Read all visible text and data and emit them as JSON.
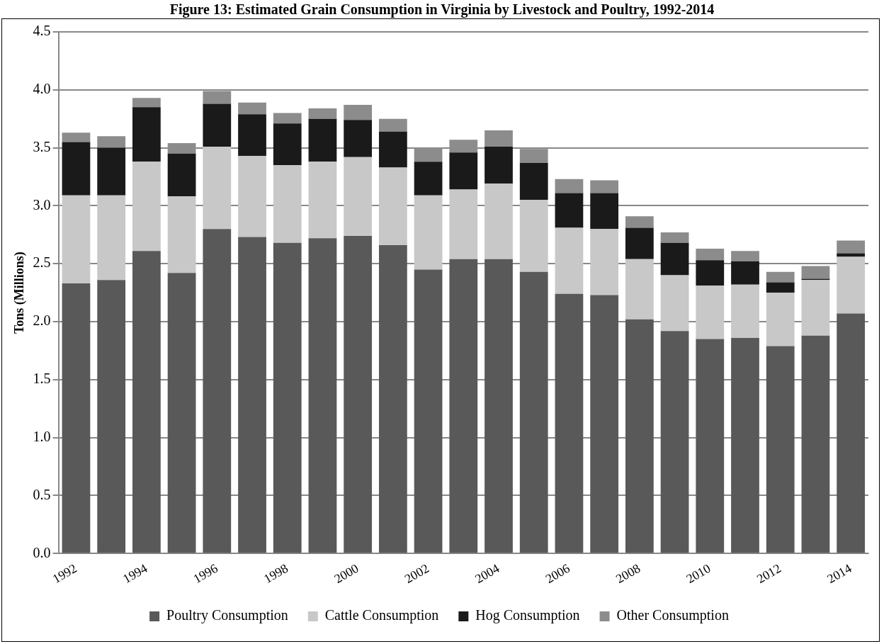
{
  "chart_data": {
    "type": "bar",
    "title": "Figure 13: Estimated Grain Consumption in Virginia by Livestock and Poultry, 1992-2014",
    "ylabel": "Tons (Millions)",
    "categories": [
      "1992",
      null,
      "1994",
      null,
      "1996",
      null,
      "1998",
      null,
      "2000",
      null,
      "2002",
      null,
      "2004",
      null,
      "2006",
      null,
      "2008",
      null,
      "2010",
      null,
      "2012",
      null,
      "2014"
    ],
    "stacked": true,
    "series": [
      {
        "name": "Poultry Consumption",
        "color": "#595959",
        "values": [
          2.33,
          2.36,
          2.61,
          2.42,
          2.8,
          2.73,
          2.68,
          2.72,
          2.74,
          2.66,
          2.45,
          2.54,
          2.54,
          2.43,
          2.24,
          2.23,
          2.02,
          1.92,
          1.85,
          1.86,
          1.79,
          1.88,
          2.07
        ]
      },
      {
        "name": "Cattle Consumption",
        "color": "#c8c8c8",
        "values": [
          0.76,
          0.73,
          0.77,
          0.66,
          0.71,
          0.7,
          0.67,
          0.66,
          0.68,
          0.67,
          0.64,
          0.6,
          0.65,
          0.62,
          0.57,
          0.57,
          0.52,
          0.48,
          0.46,
          0.46,
          0.46,
          0.48,
          0.49
        ]
      },
      {
        "name": "Hog Consumption",
        "color": "#1a1a1a",
        "values": [
          0.46,
          0.41,
          0.47,
          0.37,
          0.37,
          0.36,
          0.36,
          0.37,
          0.32,
          0.31,
          0.29,
          0.32,
          0.32,
          0.32,
          0.3,
          0.31,
          0.27,
          0.28,
          0.22,
          0.2,
          0.09,
          0.01,
          0.03
        ]
      },
      {
        "name": "Other Consumption",
        "color": "#8c8c8c",
        "values": [
          0.08,
          0.1,
          0.08,
          0.09,
          0.11,
          0.1,
          0.09,
          0.09,
          0.13,
          0.11,
          0.12,
          0.11,
          0.14,
          0.12,
          0.12,
          0.11,
          0.1,
          0.09,
          0.1,
          0.09,
          0.09,
          0.11,
          0.11
        ]
      }
    ],
    "ylim": [
      0,
      4.5
    ],
    "yticks": [
      {
        "value": 0,
        "label": "0.0"
      },
      {
        "value": 0.5,
        "label": "0.5"
      },
      {
        "value": 1,
        "label": "1.0"
      },
      {
        "value": 1.5,
        "label": "1.5"
      },
      {
        "value": 2,
        "label": "2.0"
      },
      {
        "value": 2.5,
        "label": "2.5"
      },
      {
        "value": 3,
        "label": "3.0"
      },
      {
        "value": 3.5,
        "label": "3.5"
      },
      {
        "value": 4,
        "label": "4.0"
      },
      {
        "value": 4.5,
        "label": "4.5"
      }
    ],
    "grid": "y",
    "legend": "bottom"
  }
}
